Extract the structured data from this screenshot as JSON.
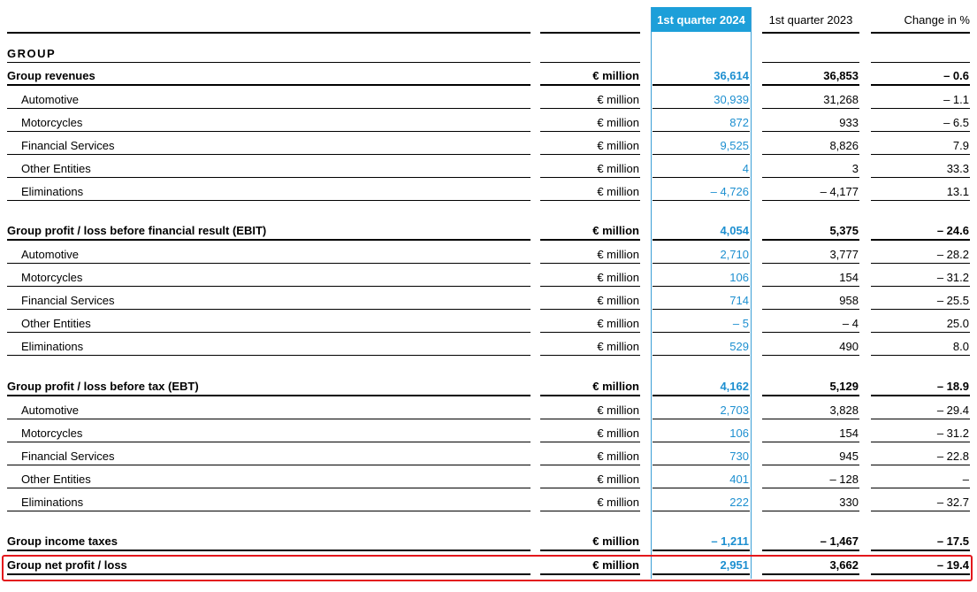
{
  "columns": {
    "current": "1st quarter 2024",
    "previous": "1st quarter 2023",
    "change": "Change in %"
  },
  "section_title": "GROUP",
  "rows": [
    {
      "label": "Group revenues",
      "unit": "€ million",
      "current": "36,614",
      "previous": "36,853",
      "change": "– 0.6",
      "bold": true
    },
    {
      "label": "Automotive",
      "unit": "€ million",
      "current": "30,939",
      "previous": "31,268",
      "change": "– 1.1"
    },
    {
      "label": "Motorcycles",
      "unit": "€ million",
      "current": "872",
      "previous": "933",
      "change": "– 6.5"
    },
    {
      "label": "Financial Services",
      "unit": "€ million",
      "current": "9,525",
      "previous": "8,826",
      "change": "7.9"
    },
    {
      "label": "Other Entities",
      "unit": "€ million",
      "current": "4",
      "previous": "3",
      "change": "33.3"
    },
    {
      "label": "Eliminations",
      "unit": "€ million",
      "current": "– 4,726",
      "previous": "– 4,177",
      "change": "13.1"
    },
    {
      "label": "Group profit / loss before financial result (EBIT)",
      "unit": "€ million",
      "current": "4,054",
      "previous": "5,375",
      "change": "– 24.6",
      "bold": true
    },
    {
      "label": "Automotive",
      "unit": "€ million",
      "current": "2,710",
      "previous": "3,777",
      "change": "– 28.2"
    },
    {
      "label": "Motorcycles",
      "unit": "€ million",
      "current": "106",
      "previous": "154",
      "change": "– 31.2"
    },
    {
      "label": "Financial Services",
      "unit": "€ million",
      "current": "714",
      "previous": "958",
      "change": "– 25.5"
    },
    {
      "label": "Other Entities",
      "unit": "€ million",
      "current": "– 5",
      "previous": "– 4",
      "change": "25.0"
    },
    {
      "label": "Eliminations",
      "unit": "€ million",
      "current": "529",
      "previous": "490",
      "change": "8.0"
    },
    {
      "label": "Group profit / loss before tax (EBT)",
      "unit": "€ million",
      "current": "4,162",
      "previous": "5,129",
      "change": "– 18.9",
      "bold": true
    },
    {
      "label": "Automotive",
      "unit": "€ million",
      "current": "2,703",
      "previous": "3,828",
      "change": "– 29.4"
    },
    {
      "label": "Motorcycles",
      "unit": "€ million",
      "current": "106",
      "previous": "154",
      "change": "– 31.2"
    },
    {
      "label": "Financial Services",
      "unit": "€ million",
      "current": "730",
      "previous": "945",
      "change": "– 22.8"
    },
    {
      "label": "Other Entities",
      "unit": "€ million",
      "current": "401",
      "previous": "– 128",
      "change": "–"
    },
    {
      "label": "Eliminations",
      "unit": "€ million",
      "current": "222",
      "previous": "330",
      "change": "– 32.7"
    },
    {
      "label": "Group income taxes",
      "unit": "€ million",
      "current": "– 1,211",
      "previous": "– 1,467",
      "change": "– 17.5",
      "bold": true
    },
    {
      "label": "Group net profit / loss",
      "unit": "€ million",
      "current": "2,951",
      "previous": "3,662",
      "change": "– 19.4",
      "bold": true
    }
  ],
  "colors": {
    "accent": "#1d9fd9",
    "current_value": "#1d8fd0",
    "highlight_border": "#e3161b"
  }
}
